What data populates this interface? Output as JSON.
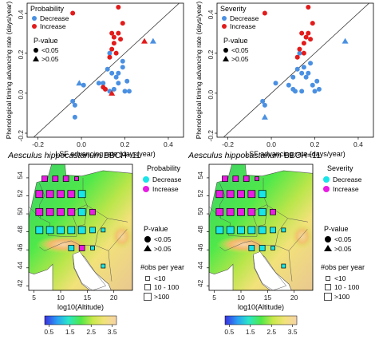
{
  "colors": {
    "decrease": "#4a90e2",
    "increase": "#e21b1b",
    "map_decrease": "#19e5e8",
    "map_increase": "#e81ce3",
    "water": "#ffffff"
  },
  "chart_data": [
    {
      "type": "scatter",
      "panel": "probability",
      "xlabel": "LSF advancing rate (days/year)",
      "ylabel": "Phenological timing advancing rate (days/year)",
      "xlim": [
        -0.25,
        0.47
      ],
      "ylim": [
        -0.22,
        0.45
      ],
      "xticks": [
        -0.2,
        0,
        0.2,
        0.4
      ],
      "yticks": [
        -0.2,
        0,
        0.2,
        0.4
      ],
      "tick_labels_x": [
        "-0.2",
        "0.0",
        "0.2",
        "0.4"
      ],
      "tick_labels_y": [
        "-0.2",
        "0.0",
        "0.2",
        "0.4"
      ],
      "reference_line": "1:1",
      "legend": {
        "title": "Probability",
        "entries": [
          "Decrease",
          "Increase"
        ],
        "pvalue_title": "P-value",
        "pvalue_entries": [
          "<0.05",
          ">0.05"
        ]
      },
      "series": [
        {
          "name": "Decrease",
          "points": [
            [
              -0.04,
              -0.04
            ],
            [
              -0.03,
              -0.06
            ],
            [
              -0.03,
              -0.12
            ],
            [
              0.01,
              0.04
            ],
            [
              0.08,
              0.05
            ],
            [
              0.1,
              0.05
            ],
            [
              0.12,
              0.12
            ],
            [
              0.13,
              0.2
            ],
            [
              0.13,
              0.01
            ],
            [
              0.14,
              0.1
            ],
            [
              0.15,
              0.02
            ],
            [
              0.16,
              0.08
            ],
            [
              0.17,
              0.1
            ],
            [
              0.17,
              0.05
            ],
            [
              0.19,
              0.13
            ],
            [
              0.19,
              0.16
            ],
            [
              0.2,
              0.01
            ],
            [
              0.21,
              0.06
            ],
            [
              0.22,
              0.01
            ]
          ],
          "sig": [
            true,
            true,
            true,
            true,
            true,
            true,
            true,
            true,
            true,
            true,
            true,
            true,
            true,
            true,
            true,
            true,
            true,
            true,
            true
          ]
        },
        {
          "name": "Decrease",
          "points": [
            [
              -0.01,
              0.05
            ],
            [
              0.33,
              0.26
            ]
          ],
          "sig": [
            false,
            false
          ]
        },
        {
          "name": "Increase",
          "points": [
            [
              -0.04,
              0.4
            ],
            [
              0.1,
              0.03
            ],
            [
              0.11,
              0.02
            ],
            [
              0.13,
              0.18
            ],
            [
              0.14,
              0.3
            ],
            [
              0.14,
              0.22
            ],
            [
              0.15,
              0.28
            ],
            [
              0.15,
              0.25
            ],
            [
              0.16,
              0.2
            ],
            [
              0.17,
              0.43
            ],
            [
              0.17,
              0.3
            ],
            [
              0.18,
              0.27
            ],
            [
              0.19,
              0.35
            ]
          ],
          "sig": [
            true,
            true,
            true,
            true,
            true,
            true,
            true,
            true,
            true,
            true,
            true,
            true,
            true
          ]
        },
        {
          "name": "Increase",
          "points": [
            [
              0.14,
              0.0
            ],
            [
              0.29,
              0.26
            ]
          ],
          "sig": [
            false,
            false
          ]
        }
      ]
    },
    {
      "type": "scatter",
      "panel": "severity",
      "xlabel": "LSF advancing rate (days/year)",
      "ylabel": "Phenological timing advancing rate (days/year)",
      "xlim": [
        -0.25,
        0.47
      ],
      "ylim": [
        -0.22,
        0.45
      ],
      "xticks": [
        -0.2,
        0,
        0.2,
        0.4
      ],
      "yticks": [
        -0.2,
        0,
        0.2,
        0.4
      ],
      "tick_labels_x": [
        "-0.2",
        "0.0",
        "0.2",
        "0.4"
      ],
      "tick_labels_y": [
        "-0.2",
        "0.0",
        "0.2",
        "0.4"
      ],
      "reference_line": "1:1",
      "legend": {
        "title": "Severity",
        "entries": [
          "Decrease",
          "Increase"
        ],
        "pvalue_title": "P-value",
        "pvalue_entries": [
          "<0.05",
          ">0.05"
        ]
      },
      "series": [
        {
          "name": "Decrease",
          "points": [
            [
              -0.04,
              -0.04
            ],
            [
              -0.03,
              -0.06
            ],
            [
              0.02,
              0.05
            ],
            [
              0.08,
              0.04
            ],
            [
              0.1,
              0.02
            ],
            [
              0.11,
              0.01
            ],
            [
              0.12,
              0.12
            ],
            [
              0.13,
              0.2
            ],
            [
              0.14,
              0.01
            ],
            [
              0.14,
              0.1
            ],
            [
              0.15,
              0.13
            ],
            [
              0.16,
              0.08
            ],
            [
              0.17,
              0.1
            ],
            [
              0.18,
              0.15
            ],
            [
              0.19,
              0.04
            ],
            [
              0.2,
              0.01
            ],
            [
              0.21,
              0.06
            ],
            [
              0.22,
              0.02
            ],
            [
              0.1,
              0.08
            ]
          ],
          "sig": [
            true,
            true,
            true,
            true,
            true,
            true,
            true,
            true,
            true,
            true,
            true,
            true,
            true,
            true,
            true,
            true,
            true,
            true,
            true
          ]
        },
        {
          "name": "Decrease",
          "points": [
            [
              -0.03,
              -0.12
            ],
            [
              0.34,
              0.26
            ]
          ],
          "sig": [
            false,
            false
          ]
        },
        {
          "name": "Increase",
          "points": [
            [
              -0.03,
              0.4
            ],
            [
              0.12,
              0.18
            ],
            [
              0.13,
              0.22
            ],
            [
              0.14,
              0.3
            ],
            [
              0.15,
              0.25
            ],
            [
              0.16,
              0.28
            ],
            [
              0.17,
              0.43
            ],
            [
              0.17,
              0.3
            ],
            [
              0.18,
              0.27
            ],
            [
              0.19,
              0.35
            ],
            [
              0.15,
              0.2
            ]
          ],
          "sig": [
            true,
            true,
            true,
            true,
            true,
            true,
            true,
            true,
            true,
            true,
            true
          ]
        },
        {
          "name": "Increase",
          "points": [],
          "sig": []
        }
      ]
    },
    {
      "type": "heatmap",
      "panel": "probability-map",
      "title_species": "Aesculus hippocastanum",
      "title_stage": "BBCH=11",
      "xlabel": "log10(Altitude)",
      "xticks": [
        5,
        10,
        15,
        20
      ],
      "yticks": [
        42,
        44,
        46,
        48,
        50,
        52,
        54
      ],
      "xlim": [
        4,
        23.5
      ],
      "ylim": [
        41.5,
        55.5
      ],
      "colorbar": {
        "ticks": [
          "0.5",
          "1.5",
          "2.5",
          "3.5"
        ],
        "range": [
          0.3,
          3.7
        ],
        "colors": [
          "#3b2fe0",
          "#2a9df4",
          "#2be6c8",
          "#4fe84a",
          "#c9e84a",
          "#f2e27a",
          "#f5d3a8"
        ]
      },
      "legend": {
        "title": "Probability",
        "entries": [
          "Decrease",
          "Increase"
        ],
        "pvalue_title": "P-value",
        "pvalue_entries": [
          "<0.05",
          ">0.05"
        ],
        "obs_title": "#obs per year",
        "obs_entries": [
          "<10",
          "10 - 100",
          ">100"
        ]
      },
      "cells": [
        {
          "lon": 7,
          "lat": 53.9,
          "class": "Increase",
          "size": "10 - 100",
          "sig": true
        },
        {
          "lon": 9,
          "lat": 53.9,
          "class": "Increase",
          "size": "10 - 100",
          "sig": true
        },
        {
          "lon": 11,
          "lat": 53.9,
          "class": "Increase",
          "size": "10 - 100",
          "sig": true
        },
        {
          "lon": 13,
          "lat": 53.9,
          "class": "Increase",
          "size": "<10",
          "sig": true
        },
        {
          "lon": 6,
          "lat": 52.2,
          "class": "Increase",
          "size": ">100",
          "sig": true
        },
        {
          "lon": 8,
          "lat": 52.2,
          "class": "Increase",
          "size": ">100",
          "sig": true
        },
        {
          "lon": 10,
          "lat": 52.2,
          "class": "Increase",
          "size": ">100",
          "sig": true
        },
        {
          "lon": 12,
          "lat": 52.2,
          "class": "Increase",
          "size": ">100",
          "sig": true
        },
        {
          "lon": 14,
          "lat": 52.2,
          "class": "Decrease",
          "size": ">100",
          "sig": true
        },
        {
          "lon": 6,
          "lat": 50.2,
          "class": "Increase",
          "size": ">100",
          "sig": true
        },
        {
          "lon": 8,
          "lat": 50.2,
          "class": "Increase",
          "size": ">100",
          "sig": true
        },
        {
          "lon": 10,
          "lat": 50.2,
          "class": "Increase",
          "size": ">100",
          "sig": true
        },
        {
          "lon": 12,
          "lat": 50.2,
          "class": "Increase",
          "size": ">100",
          "sig": true
        },
        {
          "lon": 14,
          "lat": 50.2,
          "class": "Decrease",
          "size": ">100",
          "sig": true
        },
        {
          "lon": 16,
          "lat": 50.2,
          "class": "Increase",
          "size": "10 - 100",
          "sig": true
        },
        {
          "lon": 6,
          "lat": 48.2,
          "class": "Decrease",
          "size": ">100",
          "sig": true
        },
        {
          "lon": 8,
          "lat": 48.2,
          "class": "Decrease",
          "size": ">100",
          "sig": true
        },
        {
          "lon": 10,
          "lat": 48.2,
          "class": "Decrease",
          "size": ">100",
          "sig": true
        },
        {
          "lon": 12,
          "lat": 48.2,
          "class": "Decrease",
          "size": ">100",
          "sig": true
        },
        {
          "lon": 14,
          "lat": 48.2,
          "class": "Decrease",
          "size": ">100",
          "sig": true
        },
        {
          "lon": 16,
          "lat": 48.2,
          "class": "Decrease",
          "size": "10 - 100",
          "sig": true
        },
        {
          "lon": 18,
          "lat": 48.2,
          "class": "Decrease",
          "size": "<10",
          "sig": true
        },
        {
          "lon": 12,
          "lat": 46.2,
          "class": "Decrease",
          "size": "10 - 100",
          "sig": true
        },
        {
          "lon": 14,
          "lat": 46.2,
          "class": "Increase",
          "size": "10 - 100",
          "sig": true
        },
        {
          "lon": 16,
          "lat": 46.2,
          "class": "Decrease",
          "size": "<10",
          "sig": true
        },
        {
          "lon": 18,
          "lat": 44.2,
          "class": "Decrease",
          "size": "<10",
          "sig": true
        }
      ]
    },
    {
      "type": "heatmap",
      "panel": "severity-map",
      "title_species": "Aesculus hippocastanum",
      "title_stage": "BBCH=11",
      "xlabel": "log10(Altitude)",
      "xticks": [
        5,
        10,
        15,
        20
      ],
      "yticks": [
        42,
        44,
        46,
        48,
        50,
        52,
        54
      ],
      "xlim": [
        4,
        23.5
      ],
      "ylim": [
        41.5,
        55.5
      ],
      "colorbar": {
        "ticks": [
          "0.5",
          "1.5",
          "2.5",
          "3.5"
        ],
        "range": [
          0.3,
          3.7
        ],
        "colors": [
          "#3b2fe0",
          "#2a9df4",
          "#2be6c8",
          "#4fe84a",
          "#c9e84a",
          "#f2e27a",
          "#f5d3a8"
        ]
      },
      "legend": {
        "title": "Severity",
        "entries": [
          "Decrease",
          "Increase"
        ],
        "pvalue_title": "P-value",
        "pvalue_entries": [
          "<0.05",
          ">0.05"
        ],
        "obs_title": "#obs per year",
        "obs_entries": [
          "<10",
          "10 - 100",
          ">100"
        ]
      },
      "cells": [
        {
          "lon": 7,
          "lat": 53.9,
          "class": "Increase",
          "size": "10 - 100",
          "sig": true
        },
        {
          "lon": 9,
          "lat": 53.9,
          "class": "Increase",
          "size": "10 - 100",
          "sig": true
        },
        {
          "lon": 11,
          "lat": 53.9,
          "class": "Increase",
          "size": "10 - 100",
          "sig": true
        },
        {
          "lon": 13,
          "lat": 53.9,
          "class": "Increase",
          "size": "<10",
          "sig": true
        },
        {
          "lon": 6,
          "lat": 52.2,
          "class": "Increase",
          "size": ">100",
          "sig": true
        },
        {
          "lon": 8,
          "lat": 52.2,
          "class": "Increase",
          "size": ">100",
          "sig": true
        },
        {
          "lon": 10,
          "lat": 52.2,
          "class": "Increase",
          "size": ">100",
          "sig": true
        },
        {
          "lon": 12,
          "lat": 52.2,
          "class": "Increase",
          "size": ">100",
          "sig": true
        },
        {
          "lon": 14,
          "lat": 52.2,
          "class": "Decrease",
          "size": ">100",
          "sig": true
        },
        {
          "lon": 6,
          "lat": 50.2,
          "class": "Increase",
          "size": ">100",
          "sig": true
        },
        {
          "lon": 8,
          "lat": 50.2,
          "class": "Increase",
          "size": ">100",
          "sig": true
        },
        {
          "lon": 10,
          "lat": 50.2,
          "class": "Increase",
          "size": ">100",
          "sig": true
        },
        {
          "lon": 12,
          "lat": 50.2,
          "class": "Increase",
          "size": ">100",
          "sig": true
        },
        {
          "lon": 14,
          "lat": 50.2,
          "class": "Decrease",
          "size": ">100",
          "sig": true
        },
        {
          "lon": 16,
          "lat": 50.2,
          "class": "Increase",
          "size": "10 - 100",
          "sig": true
        },
        {
          "lon": 6,
          "lat": 48.2,
          "class": "Decrease",
          "size": ">100",
          "sig": true
        },
        {
          "lon": 8,
          "lat": 48.2,
          "class": "Decrease",
          "size": ">100",
          "sig": true
        },
        {
          "lon": 10,
          "lat": 48.2,
          "class": "Decrease",
          "size": ">100",
          "sig": true
        },
        {
          "lon": 12,
          "lat": 48.2,
          "class": "Decrease",
          "size": ">100",
          "sig": true
        },
        {
          "lon": 14,
          "lat": 48.2,
          "class": "Decrease",
          "size": ">100",
          "sig": true
        },
        {
          "lon": 16,
          "lat": 48.2,
          "class": "Decrease",
          "size": "10 - 100",
          "sig": true
        },
        {
          "lon": 18,
          "lat": 48.2,
          "class": "Decrease",
          "size": "<10",
          "sig": true
        },
        {
          "lon": 12,
          "lat": 46.2,
          "class": "Decrease",
          "size": "10 - 100",
          "sig": true
        },
        {
          "lon": 14,
          "lat": 46.2,
          "class": "Decrease",
          "size": "10 - 100",
          "sig": true
        },
        {
          "lon": 16,
          "lat": 46.2,
          "class": "Decrease",
          "size": "<10",
          "sig": true
        },
        {
          "lon": 18,
          "lat": 44.2,
          "class": "Decrease",
          "size": "<10",
          "sig": true
        }
      ]
    }
  ]
}
